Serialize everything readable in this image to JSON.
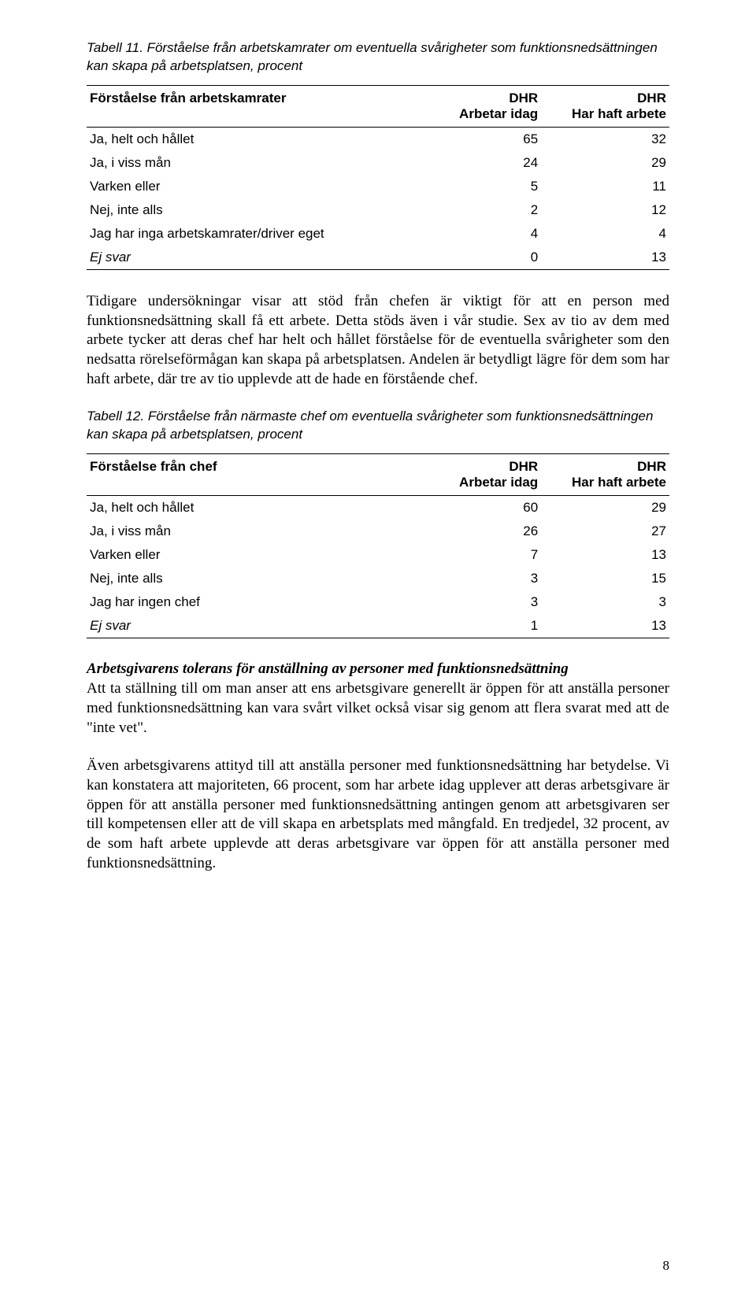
{
  "table11": {
    "caption": "Tabell 11. Förståelse från arbetskamrater om eventuella svårigheter som funktionsnedsättningen kan skapa på arbetsplatsen, procent",
    "col0": "Förståelse från arbetskamrater",
    "col1_top": "DHR",
    "col1_sub": "Arbetar idag",
    "col2_top": "DHR",
    "col2_sub": "Har haft arbete",
    "rows": [
      {
        "label": "Ja, helt och hållet",
        "v1": "65",
        "v2": "32",
        "italic": false
      },
      {
        "label": "Ja, i viss mån",
        "v1": "24",
        "v2": "29",
        "italic": false
      },
      {
        "label": "Varken eller",
        "v1": "5",
        "v2": "11",
        "italic": false
      },
      {
        "label": "Nej, inte alls",
        "v1": "2",
        "v2": "12",
        "italic": false
      },
      {
        "label": "Jag har inga arbetskamrater/driver eget",
        "v1": "4",
        "v2": "4",
        "italic": false
      },
      {
        "label": "Ej svar",
        "v1": "0",
        "v2": "13",
        "italic": true
      }
    ]
  },
  "para1": "Tidigare undersökningar visar att stöd från chefen är viktigt för att en person med funktionsnedsättning skall få ett arbete. Detta stöds även i vår studie. Sex av tio av dem med arbete tycker att deras chef har helt och hållet förståelse för de eventuella svårigheter som den nedsatta rörelseförmågan kan skapa på arbetsplatsen. Andelen är betydligt lägre för dem som har haft arbete, där tre av tio upplevde att de hade en förstående chef.",
  "table12": {
    "caption": "Tabell 12. Förståelse från närmaste chef om eventuella svårigheter som funktionsnedsättningen kan skapa på arbetsplatsen, procent",
    "col0": "Förståelse från chef",
    "col1_top": "DHR",
    "col1_sub": "Arbetar idag",
    "col2_top": "DHR",
    "col2_sub": "Har haft arbete",
    "rows": [
      {
        "label": "Ja, helt och hållet",
        "v1": "60",
        "v2": "29",
        "italic": false
      },
      {
        "label": "Ja, i viss mån",
        "v1": "26",
        "v2": "27",
        "italic": false
      },
      {
        "label": "Varken eller",
        "v1": "7",
        "v2": "13",
        "italic": false
      },
      {
        "label": "Nej, inte alls",
        "v1": "3",
        "v2": "15",
        "italic": false
      },
      {
        "label": "Jag har ingen chef",
        "v1": "3",
        "v2": "3",
        "italic": false
      },
      {
        "label": "Ej svar",
        "v1": "1",
        "v2": "13",
        "italic": true
      }
    ]
  },
  "subtitle": "Arbetsgivarens tolerans för anställning av personer med funktionsnedsättning",
  "para2": "Att ta ställning till om man anser att ens arbetsgivare generellt är öppen för att anställa personer med funktionsnedsättning kan vara svårt vilket också visar sig genom att flera svarat med att de \"inte vet\".",
  "para3": "Även arbetsgivarens attityd till att anställa personer med funktionsnedsättning har betydelse. Vi kan konstatera att majoriteten, 66 procent, som har arbete idag upplever att deras arbetsgivare är öppen för att anställa personer med funktionsnedsättning antingen genom att arbetsgivaren ser till kompetensen eller att de vill skapa en arbetsplats med mångfald. En tredjedel, 32 procent, av de som haft arbete upplevde att deras arbetsgivare var öppen för att anställa personer med funktionsnedsättning.",
  "pageNumber": "8"
}
